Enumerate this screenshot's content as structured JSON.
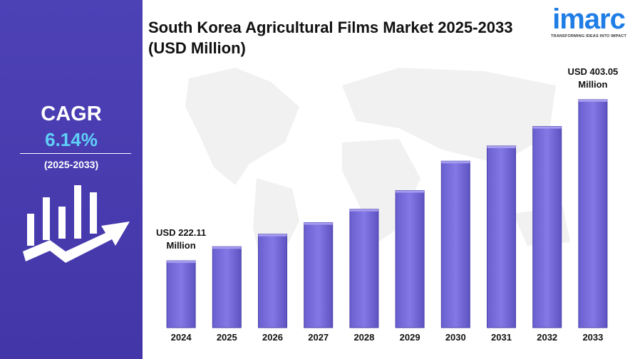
{
  "sidebar": {
    "label": "CAGR",
    "value": "6.14%",
    "period": "(2025-2033)"
  },
  "logo": {
    "name": "imarc",
    "tagline": "TRANSFORMING IDEAS INTO IMPACT"
  },
  "chart_data": {
    "type": "bar",
    "title": "South Korea Agricultural Films Market 2025-2033 (USD Million)",
    "categories": [
      "2024",
      "2025",
      "2026",
      "2027",
      "2028",
      "2029",
      "2030",
      "2031",
      "2032",
      "2033"
    ],
    "values": [
      222.11,
      238,
      252,
      265,
      280,
      301,
      334,
      351,
      373,
      403.05
    ],
    "value_labels": [
      "USD 222.11 Million",
      null,
      null,
      null,
      null,
      null,
      null,
      null,
      null,
      "USD 403.05 Million"
    ],
    "color": "#7b70dd",
    "ylim": [
      147,
      411
    ]
  }
}
